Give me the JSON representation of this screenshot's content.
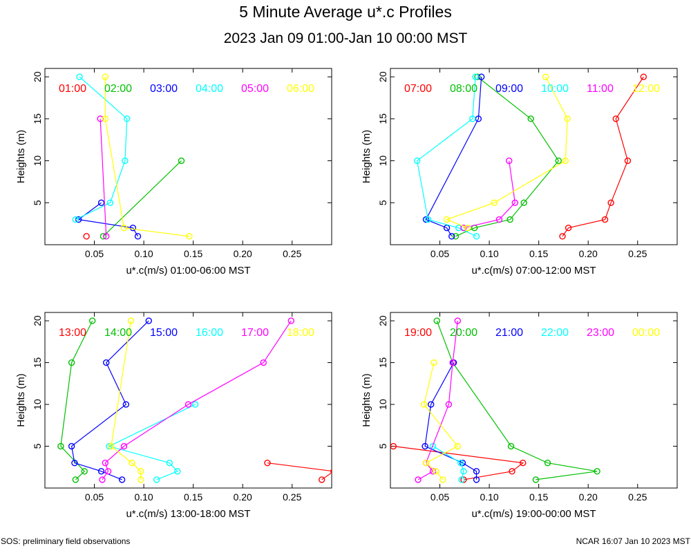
{
  "header": {
    "title": "5 Minute Average u*.c Profiles",
    "subtitle": "2023 Jan 09 01:00-Jan 10 00:00 MST"
  },
  "footer": {
    "left": "SOS: preliminary field observations",
    "right": "NCAR 16:07 Jan 10 2023 MST"
  },
  "colors": [
    "#ff0000",
    "#00c000",
    "#0000ff",
    "#00ffff",
    "#ff00ff",
    "#ffff00"
  ],
  "chart_data": [
    {
      "type": "line",
      "title": "",
      "xlabel": "u*.c(m/s) 01:00-06:00 MST",
      "ylabel": "Heights (m)",
      "xlim": [
        0.0,
        0.29
      ],
      "ylim": [
        0.0,
        21.0
      ],
      "xticks": [
        0.05,
        0.1,
        0.15,
        0.2,
        0.25
      ],
      "xtick_labels": [
        "0.05",
        "0.10",
        "0.15",
        "0.20",
        "0.25"
      ],
      "yticks": [
        5,
        10,
        15,
        20
      ],
      "ytick_labels": [
        "5",
        "10",
        "15",
        "20"
      ],
      "series": [
        {
          "name": "01:00",
          "points": [
            [
              0.042,
              1
            ]
          ]
        },
        {
          "name": "02:00",
          "points": [
            [
              0.059,
              1
            ],
            [
              0.138,
              10
            ]
          ]
        },
        {
          "name": "03:00",
          "points": [
            [
              0.094,
              1
            ],
            [
              0.089,
              2
            ],
            [
              0.034,
              3
            ],
            [
              0.057,
              5
            ]
          ]
        },
        {
          "name": "04:00",
          "points": [
            [
              0.031,
              3
            ],
            [
              0.066,
              5
            ],
            [
              0.081,
              10
            ],
            [
              0.083,
              15
            ],
            [
              0.035,
              20
            ]
          ]
        },
        {
          "name": "05:00",
          "points": [
            [
              0.062,
              1
            ],
            [
              0.056,
              15
            ]
          ]
        },
        {
          "name": "06:00",
          "points": [
            [
              0.146,
              1
            ],
            [
              0.08,
              2
            ],
            [
              0.061,
              15
            ],
            [
              0.061,
              20
            ]
          ]
        }
      ]
    },
    {
      "type": "line",
      "title": "",
      "xlabel": "u*.c(m/s) 07:00-12:00 MST",
      "ylabel": "Heights (m)",
      "xlim": [
        0.0,
        0.29
      ],
      "ylim": [
        0.0,
        21.0
      ],
      "xticks": [
        0.05,
        0.1,
        0.15,
        0.2,
        0.25
      ],
      "xtick_labels": [
        "0.05",
        "0.10",
        "0.15",
        "0.20",
        "0.25"
      ],
      "yticks": [
        5,
        10,
        15,
        20
      ],
      "ytick_labels": [
        "5",
        "10",
        "15",
        "20"
      ],
      "series": [
        {
          "name": "07:00",
          "points": [
            [
              0.174,
              1
            ],
            [
              0.18,
              2
            ],
            [
              0.217,
              3
            ],
            [
              0.223,
              5
            ],
            [
              0.24,
              10
            ],
            [
              0.228,
              15
            ],
            [
              0.256,
              20
            ]
          ]
        },
        {
          "name": "08:00",
          "points": [
            [
              0.066,
              1
            ],
            [
              0.085,
              2
            ],
            [
              0.121,
              3
            ],
            [
              0.135,
              5
            ],
            [
              0.17,
              10
            ],
            [
              0.142,
              15
            ],
            [
              0.088,
              20
            ]
          ]
        },
        {
          "name": "09:00",
          "points": [
            [
              0.062,
              1
            ],
            [
              0.057,
              2
            ],
            [
              0.036,
              3
            ],
            [
              0.089,
              15
            ],
            [
              0.092,
              20
            ]
          ]
        },
        {
          "name": "10:00",
          "points": [
            [
              0.087,
              1
            ],
            [
              0.069,
              2
            ],
            [
              0.038,
              3
            ],
            [
              0.027,
              10
            ],
            [
              0.083,
              15
            ],
            [
              0.086,
              20
            ]
          ]
        },
        {
          "name": "11:00",
          "points": [
            [
              0.074,
              2
            ],
            [
              0.11,
              3
            ],
            [
              0.126,
              5
            ],
            [
              0.12,
              10
            ]
          ]
        },
        {
          "name": "12:00",
          "points": [
            [
              0.078,
              2
            ],
            [
              0.057,
              3
            ],
            [
              0.105,
              5
            ],
            [
              0.177,
              10
            ],
            [
              0.179,
              15
            ],
            [
              0.157,
              20
            ]
          ]
        }
      ]
    },
    {
      "type": "line",
      "title": "",
      "xlabel": "u*.c(m/s) 13:00-18:00 MST",
      "ylabel": "Heights (m)",
      "xlim": [
        0.0,
        0.29
      ],
      "ylim": [
        0.0,
        21.0
      ],
      "xticks": [
        0.05,
        0.1,
        0.15,
        0.2,
        0.25
      ],
      "xtick_labels": [
        "0.05",
        "0.10",
        "0.15",
        "0.20",
        "0.25"
      ],
      "yticks": [
        5,
        10,
        15,
        20
      ],
      "ytick_labels": [
        "5",
        "10",
        "15",
        "20"
      ],
      "series": [
        {
          "name": "13:00",
          "points": [
            [
              0.28,
              1
            ],
            [
              0.292,
              2
            ],
            [
              0.225,
              3
            ]
          ]
        },
        {
          "name": "14:00",
          "points": [
            [
              0.031,
              1
            ],
            [
              0.04,
              2
            ],
            [
              0.016,
              5
            ],
            [
              0.027,
              15
            ],
            [
              0.048,
              20
            ]
          ]
        },
        {
          "name": "15:00",
          "points": [
            [
              0.078,
              1
            ],
            [
              0.057,
              2
            ],
            [
              0.03,
              3
            ],
            [
              0.027,
              5
            ],
            [
              0.082,
              10
            ],
            [
              0.062,
              15
            ],
            [
              0.105,
              20
            ]
          ]
        },
        {
          "name": "16:00",
          "points": [
            [
              0.113,
              1
            ],
            [
              0.134,
              2
            ],
            [
              0.126,
              3
            ],
            [
              0.065,
              5
            ],
            [
              0.152,
              10
            ]
          ]
        },
        {
          "name": "17:00",
          "points": [
            [
              0.058,
              1
            ],
            [
              0.064,
              2
            ],
            [
              0.061,
              3
            ],
            [
              0.08,
              5
            ],
            [
              0.145,
              10
            ],
            [
              0.221,
              15
            ],
            [
              0.249,
              20
            ]
          ]
        },
        {
          "name": "18:00",
          "points": [
            [
              0.097,
              1
            ],
            [
              0.097,
              2
            ],
            [
              0.088,
              3
            ],
            [
              0.067,
              5
            ],
            [
              0.087,
              20
            ]
          ]
        }
      ]
    },
    {
      "type": "line",
      "title": "",
      "xlabel": "u*.c(m/s) 19:00-00:00 MST",
      "ylabel": "Heights (m)",
      "xlim": [
        0.0,
        0.29
      ],
      "ylim": [
        0.0,
        21.0
      ],
      "xticks": [
        0.05,
        0.1,
        0.15,
        0.2,
        0.25
      ],
      "xtick_labels": [
        "0.05",
        "0.10",
        "0.15",
        "0.20",
        "0.25"
      ],
      "yticks": [
        5,
        10,
        15,
        20
      ],
      "ytick_labels": [
        "5",
        "10",
        "15",
        "20"
      ],
      "series": [
        {
          "name": "19:00",
          "points": [
            [
              0.074,
              1
            ],
            [
              0.123,
              2
            ],
            [
              0.134,
              3
            ],
            [
              0.003,
              5
            ]
          ]
        },
        {
          "name": "20:00",
          "points": [
            [
              0.147,
              1
            ],
            [
              0.209,
              2
            ],
            [
              0.159,
              3
            ],
            [
              0.122,
              5
            ],
            [
              0.063,
              15
            ],
            [
              0.047,
              20
            ]
          ]
        },
        {
          "name": "21:00",
          "points": [
            [
              0.087,
              1
            ],
            [
              0.087,
              2
            ],
            [
              0.073,
              3
            ],
            [
              0.035,
              5
            ],
            [
              0.041,
              10
            ],
            [
              0.064,
              15
            ]
          ]
        },
        {
          "name": "22:00",
          "points": [
            [
              0.072,
              1
            ],
            [
              0.074,
              2
            ],
            [
              0.071,
              3
            ],
            [
              0.043,
              5
            ]
          ]
        },
        {
          "name": "23:00",
          "points": [
            [
              0.028,
              1
            ],
            [
              0.043,
              2
            ],
            [
              0.036,
              3
            ],
            [
              0.059,
              10
            ],
            [
              0.063,
              15
            ],
            [
              0.068,
              20
            ]
          ]
        },
        {
          "name": "00:00",
          "points": [
            [
              0.053,
              1
            ],
            [
              0.046,
              2
            ],
            [
              0.036,
              3
            ],
            [
              0.068,
              5
            ],
            [
              0.034,
              10
            ],
            [
              0.044,
              15
            ]
          ]
        }
      ]
    }
  ]
}
